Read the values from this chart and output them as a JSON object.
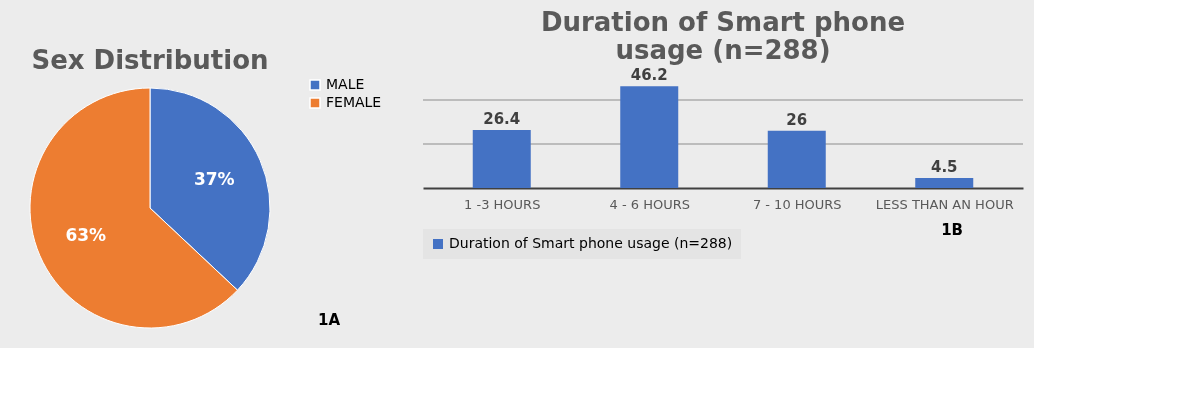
{
  "chart_data": [
    {
      "type": "pie",
      "title": "Sex Distribution",
      "categories": [
        "MALE",
        "FEMALE"
      ],
      "values": [
        37,
        63
      ],
      "colors": [
        "#4472c4",
        "#ed7d31"
      ],
      "value_labels": [
        "37%",
        "63%"
      ],
      "legend": "right",
      "annotations": [
        "1A"
      ]
    },
    {
      "type": "bar",
      "title": "Duration of Smart phone usage (n=288)",
      "categories": [
        "1 -3 HOURS",
        "4 - 6 HOURS",
        "7 - 10 HOURS",
        "LESS THAN AN HOUR"
      ],
      "series": [
        {
          "name": "Duration of Smart phone usage (n=288)",
          "color": "#4472c4",
          "values": [
            26.4,
            46.2,
            26,
            4.5
          ]
        }
      ],
      "ref_lines": [
        {
          "axis": "y",
          "value": 20,
          "color": "#8c8c8c"
        },
        {
          "axis": "y",
          "value": 40,
          "color": "#8c8c8c"
        }
      ],
      "tick_labels": "x",
      "data_labels": true,
      "legend": "bottom",
      "annotations": [
        "1B"
      ]
    }
  ]
}
